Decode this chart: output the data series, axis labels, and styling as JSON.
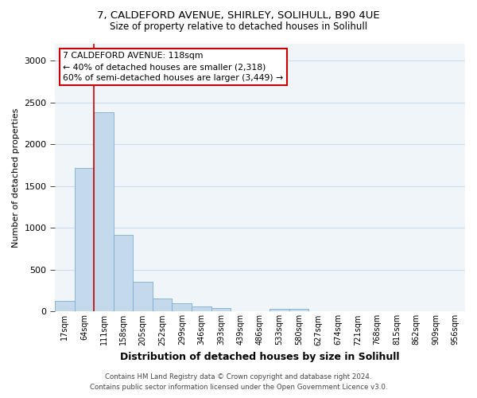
{
  "title1": "7, CALDEFORD AVENUE, SHIRLEY, SOLIHULL, B90 4UE",
  "title2": "Size of property relative to detached houses in Solihull",
  "xlabel": "Distribution of detached houses by size in Solihull",
  "ylabel": "Number of detached properties",
  "footer1": "Contains HM Land Registry data © Crown copyright and database right 2024.",
  "footer2": "Contains public sector information licensed under the Open Government Licence v3.0.",
  "annotation_title": "7 CALDEFORD AVENUE: 118sqm",
  "annotation_line1": "← 40% of detached houses are smaller (2,318)",
  "annotation_line2": "60% of semi-detached houses are larger (3,449) →",
  "bin_labels": [
    "17sqm",
    "64sqm",
    "111sqm",
    "158sqm",
    "205sqm",
    "252sqm",
    "299sqm",
    "346sqm",
    "393sqm",
    "439sqm",
    "486sqm",
    "533sqm",
    "580sqm",
    "627sqm",
    "674sqm",
    "721sqm",
    "768sqm",
    "815sqm",
    "862sqm",
    "909sqm",
    "956sqm"
  ],
  "bar_heights": [
    130,
    1720,
    2380,
    920,
    355,
    160,
    95,
    60,
    40,
    0,
    0,
    35,
    35,
    0,
    0,
    0,
    0,
    0,
    0,
    0,
    0
  ],
  "bar_color": "#c5d9ec",
  "bar_edge_color": "#7bafd4",
  "vline_x_idx": 2,
  "vline_color": "#cc0000",
  "ylim": [
    0,
    3200
  ],
  "yticks": [
    0,
    500,
    1000,
    1500,
    2000,
    2500,
    3000
  ],
  "annotation_box_edge": "#cc0000",
  "grid_color": "#d0dce8",
  "plot_bg_color": "#f0f5fa"
}
